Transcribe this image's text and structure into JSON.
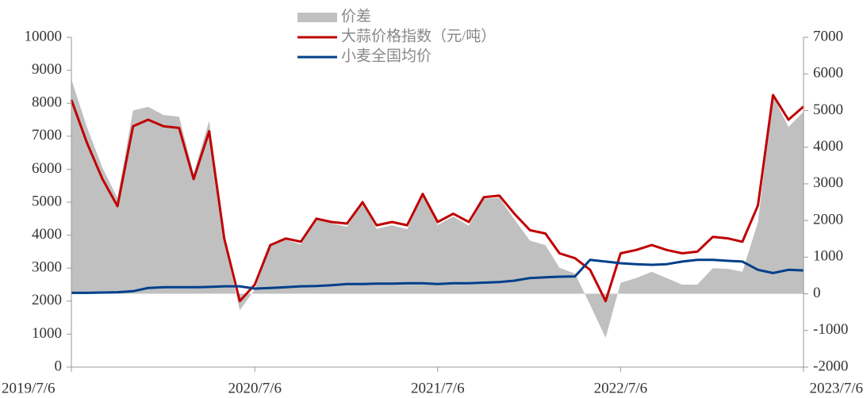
{
  "chart_data": {
    "type": "line",
    "x": [
      "2019/7/6",
      "2019/8/6",
      "2019/9/6",
      "2019/10/6",
      "2019/11/6",
      "2019/12/6",
      "2020/1/6",
      "2020/2/6",
      "2020/3/6",
      "2020/4/6",
      "2020/5/6",
      "2020/6/6",
      "2020/7/6",
      "2020/8/6",
      "2020/9/6",
      "2020/10/6",
      "2020/11/6",
      "2020/12/6",
      "2021/1/6",
      "2021/2/6",
      "2021/3/6",
      "2021/4/6",
      "2021/5/6",
      "2021/6/6",
      "2021/7/6",
      "2021/8/6",
      "2021/9/6",
      "2021/10/6",
      "2021/11/6",
      "2021/12/6",
      "2022/1/6",
      "2022/2/6",
      "2022/3/6",
      "2022/4/6",
      "2022/5/6",
      "2022/6/6",
      "2022/7/6",
      "2022/8/6",
      "2022/9/6",
      "2022/10/6",
      "2022/11/6",
      "2022/12/6",
      "2023/1/6",
      "2023/2/6",
      "2023/3/6",
      "2023/4/6",
      "2023/5/6",
      "2023/6/6",
      "2023/7/6"
    ],
    "series": [
      {
        "name": "价差",
        "type": "area",
        "axis": "y2",
        "color": "#c0c0c0",
        "values": [
          5850,
          4550,
          3440,
          2610,
          5000,
          5100,
          4880,
          4830,
          3280,
          4720,
          1450,
          -450,
          120,
          1300,
          1480,
          1350,
          2040,
          1920,
          1830,
          2480,
          1770,
          1870,
          1760,
          2710,
          1880,
          2110,
          1860,
          2590,
          2620,
          2030,
          1450,
          1330,
          710,
          550,
          -300,
          -1200,
          300,
          430,
          600,
          430,
          250,
          250,
          700,
          680,
          600,
          1950,
          5400,
          4550,
          4970
        ]
      },
      {
        "name": "大蒜价格指数（元/吨）",
        "type": "line",
        "color": "#c00000",
        "values": [
          8100,
          6800,
          5700,
          4880,
          7300,
          7500,
          7300,
          7250,
          5700,
          7150,
          3900,
          2000,
          2500,
          3700,
          3900,
          3800,
          4500,
          4400,
          4350,
          5000,
          4300,
          4400,
          4300,
          5250,
          4400,
          4650,
          4400,
          5150,
          5200,
          4650,
          4150,
          4050,
          3450,
          3300,
          2950,
          2000,
          3450,
          3550,
          3700,
          3550,
          3450,
          3500,
          3950,
          3900,
          3800,
          4900,
          8250,
          7500,
          7900
        ]
      },
      {
        "name": "小麦全国均价",
        "type": "line",
        "color": "#003f8a",
        "values": [
          2250,
          2250,
          2260,
          2270,
          2300,
          2400,
          2420,
          2420,
          2420,
          2430,
          2450,
          2450,
          2380,
          2400,
          2420,
          2450,
          2460,
          2480,
          2520,
          2520,
          2530,
          2530,
          2540,
          2540,
          2520,
          2540,
          2540,
          2560,
          2580,
          2620,
          2700,
          2720,
          2740,
          2750,
          3250,
          3200,
          3150,
          3120,
          3100,
          3120,
          3200,
          3250,
          3250,
          3220,
          3200,
          2950,
          2850,
          2950,
          2930
        ]
      }
    ],
    "xticks": [
      "2019/7/6",
      "2020/7/6",
      "2021/7/6",
      "2022/7/6",
      "2023/7/6"
    ],
    "ylim": [
      0,
      10000
    ],
    "yticks": [
      0,
      1000,
      2000,
      3000,
      4000,
      5000,
      6000,
      7000,
      8000,
      9000,
      10000
    ],
    "y2lim": [
      -2000,
      7000
    ],
    "y2ticks": [
      -2000,
      -1000,
      0,
      1000,
      2000,
      3000,
      4000,
      5000,
      6000,
      7000
    ]
  }
}
